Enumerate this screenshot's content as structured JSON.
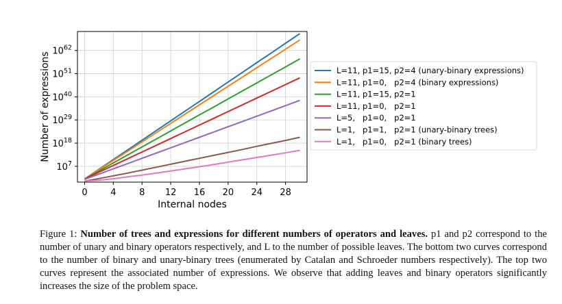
{
  "chart_data": {
    "type": "line",
    "x": [
      0,
      2,
      4,
      6,
      8,
      10,
      12,
      14,
      16,
      18,
      20,
      22,
      24,
      26,
      28,
      30
    ],
    "xlabel": "Internal nodes",
    "ylabel": "Number of expressions",
    "xlim": [
      -1,
      31
    ],
    "ylim_log10": [
      -0.5,
      71
    ],
    "yscale": "log",
    "xticks": [
      "0",
      "4",
      "8",
      "12",
      "16",
      "20",
      "24",
      "28"
    ],
    "xtick_values": [
      0,
      4,
      8,
      12,
      16,
      20,
      24,
      28
    ],
    "yticks": [
      {
        "base": "10",
        "exp": "7",
        "log10": 7
      },
      {
        "base": "10",
        "exp": "18",
        "log10": 18
      },
      {
        "base": "10",
        "exp": "29",
        "log10": 29
      },
      {
        "base": "10",
        "exp": "40",
        "log10": 40
      },
      {
        "base": "10",
        "exp": "51",
        "log10": 51
      },
      {
        "base": "10",
        "exp": "62",
        "log10": 62
      }
    ],
    "grid": true,
    "legend_position": "outside-right",
    "series": [
      {
        "name": "L=11, p1=15, p2=4 (unary-binary expressions)",
        "color": "#1f77b4",
        "log10_values": [
          1.0,
          5.6,
          10.2,
          14.8,
          19.4,
          24.0,
          28.6,
          33.2,
          37.8,
          42.4,
          47.0,
          51.6,
          56.2,
          60.8,
          65.4,
          70.0
        ]
      },
      {
        "name": "L=11, p1=0,   p2=4 (binary expressions)",
        "color": "#ff7f0e",
        "log10_values": [
          1.0,
          5.4,
          9.8,
          14.2,
          18.6,
          23.0,
          27.4,
          31.8,
          36.2,
          40.6,
          45.0,
          49.4,
          53.8,
          58.2,
          62.6,
          67.0
        ]
      },
      {
        "name": "L=11, p1=15, p2=1",
        "color": "#2ca02c",
        "log10_values": [
          1.0,
          4.8,
          8.6,
          12.4,
          16.2,
          20.0,
          23.8,
          27.6,
          31.4,
          35.2,
          39.0,
          42.8,
          46.6,
          50.4,
          54.2,
          58.0
        ]
      },
      {
        "name": "L=11, p1=0,   p2=1",
        "color": "#d62728",
        "log10_values": [
          1.0,
          4.2,
          7.4,
          10.6,
          13.8,
          17.0,
          20.2,
          23.4,
          26.6,
          29.8,
          33.0,
          36.2,
          39.4,
          42.6,
          45.8,
          49.0
        ]
      },
      {
        "name": "L=5,   p1=0,   p2=1",
        "color": "#9467bd",
        "log10_values": [
          0.8,
          3.3,
          5.8,
          8.3,
          10.8,
          13.3,
          15.8,
          18.3,
          20.8,
          23.3,
          25.8,
          28.3,
          30.8,
          33.3,
          35.8,
          38.3
        ]
      },
      {
        "name": "L=1,   p1=1,   p2=1 (unary-binary trees)",
        "color": "#8c564b",
        "log10_values": [
          0.0,
          1.2,
          2.5,
          3.8,
          5.2,
          6.6,
          8.0,
          9.4,
          10.8,
          12.2,
          13.6,
          15.0,
          16.5,
          17.9,
          19.3,
          20.8
        ]
      },
      {
        "name": "L=1,   p1=0,   p2=1 (binary trees)",
        "color": "#e377c2",
        "log10_values": [
          0.0,
          0.4,
          1.1,
          2.0,
          2.8,
          3.8,
          4.8,
          5.8,
          6.8,
          7.9,
          9.0,
          10.1,
          11.2,
          12.3,
          13.4,
          14.6
        ]
      }
    ]
  },
  "caption": {
    "label": "Figure 1:",
    "title": "Number of trees and expressions for different numbers of operators and leaves.",
    "body": "p1 and p2 correspond to the number of unary and binary operators respectively, and L to the number of possible leaves. The bottom two curves correspond to the number of binary and unary-binary trees (enumerated by Catalan and Schroeder numbers respectively). The top two curves represent the associated number of expressions. We observe that adding leaves and binary operators significantly increases the size of the problem space."
  }
}
